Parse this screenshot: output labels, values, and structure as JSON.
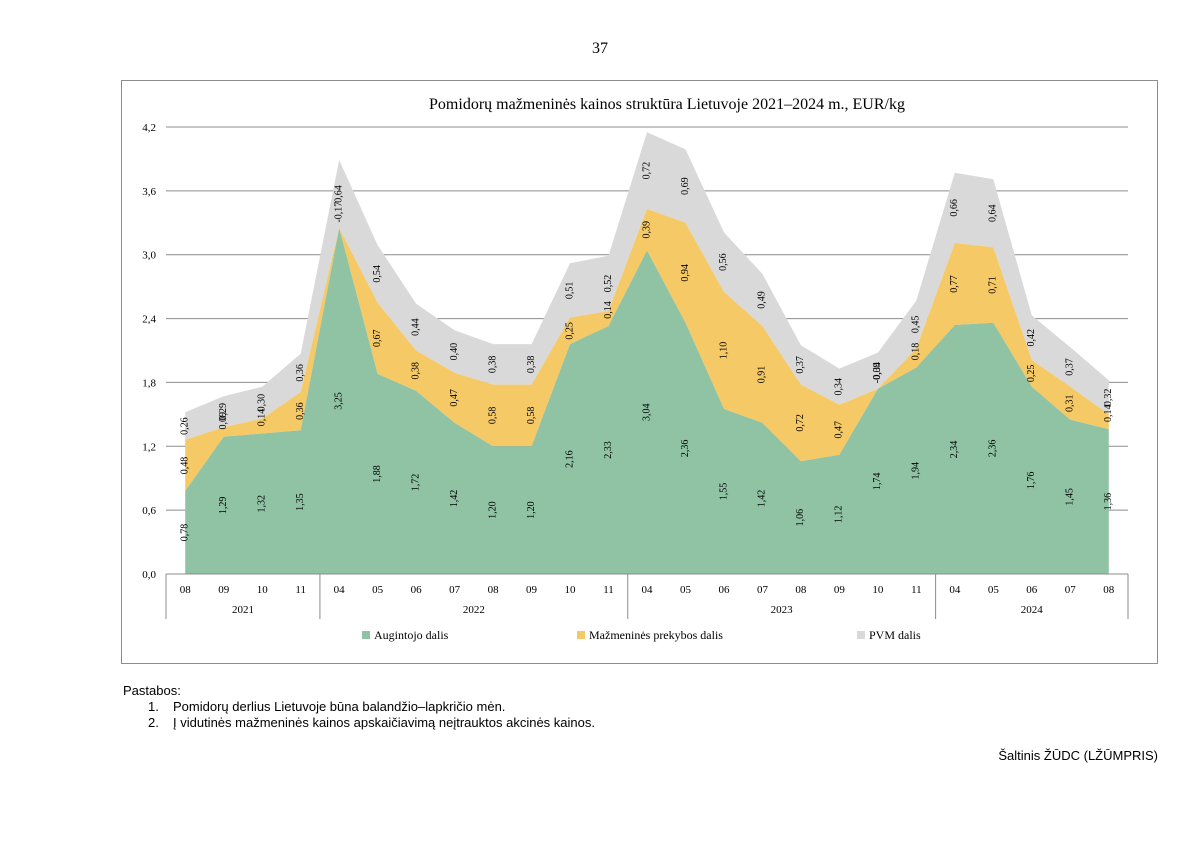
{
  "page_number": "37",
  "notes": {
    "heading": "Pastabos:",
    "items": [
      {
        "num": "1.",
        "text": "Pomidorų derlius Lietuvoje būna balandžio–lapkričio mėn."
      },
      {
        "num": "2.",
        "text": "Į vidutinės mažmeninės kainos apskaičiavimą neįtrauktos akcinės kainos."
      }
    ]
  },
  "source": "Šaltinis ŽŪDC (LŽŪMPRIS)",
  "colors": {
    "augintojo": "#8fc3a4",
    "prekybos": "#f5c966",
    "pvm": "#d9d9d9",
    "grid": "#8c8c8c"
  },
  "chart_data": {
    "type": "area",
    "stacked": true,
    "title": "Pomidorų mažmeninės kainos struktūra Lietuvoje 2021–2024 m., EUR/kg",
    "ylim": [
      0,
      4.2
    ],
    "yticks": [
      "0,0",
      "0,6",
      "1,2",
      "1,8",
      "2,4",
      "3,0",
      "3,6",
      "4,2"
    ],
    "categories": [
      "08",
      "09",
      "10",
      "11",
      "04",
      "05",
      "06",
      "07",
      "08",
      "09",
      "10",
      "11",
      "04",
      "05",
      "06",
      "07",
      "08",
      "09",
      "10",
      "11",
      "04",
      "05",
      "06",
      "07",
      "08"
    ],
    "year_groups": [
      {
        "label": "2021",
        "count": 4
      },
      {
        "label": "2022",
        "count": 8
      },
      {
        "label": "2023",
        "count": 8
      },
      {
        "label": "2024",
        "count": 5
      }
    ],
    "legend_position": "bottom",
    "series": [
      {
        "name": "Augintojo dalis",
        "color_key": "augintojo",
        "values": [
          0.78,
          1.29,
          1.32,
          1.35,
          3.25,
          1.88,
          1.72,
          1.42,
          1.2,
          1.2,
          2.16,
          2.33,
          3.04,
          2.36,
          1.55,
          1.42,
          1.06,
          1.12,
          1.74,
          1.94,
          2.34,
          2.36,
          1.76,
          1.45,
          1.36
        ],
        "labels": [
          "0,78",
          "1,29",
          "1,32",
          "1,35",
          "3,25",
          "1,88",
          "1,72",
          "1,42",
          "1,20",
          "1,20",
          "2,16",
          "2,33",
          "3,04",
          "2,36",
          "1,55",
          "1,42",
          "1,06",
          "1,12",
          "1,74",
          "1,94",
          "2,34",
          "2,36",
          "1,76",
          "1,45",
          "1,36"
        ]
      },
      {
        "name": "Mažmeninės prekybos dalis",
        "color_key": "prekybos",
        "values": [
          0.48,
          0.09,
          0.14,
          0.36,
          -0.17,
          0.67,
          0.38,
          0.47,
          0.58,
          0.58,
          0.25,
          0.14,
          0.39,
          0.94,
          1.1,
          0.91,
          0.72,
          0.47,
          -0.09,
          0.18,
          0.77,
          0.71,
          0.25,
          0.31,
          0.14
        ],
        "labels": [
          "0,48",
          "0,09",
          "0,14",
          "0,36",
          "-0,17",
          "0,67",
          "0,38",
          "0,47",
          "0,58",
          "0,58",
          "0,25",
          "0,14",
          "0,39",
          "0,94",
          "1,10",
          "0,91",
          "0,72",
          "0,47",
          "-0,09",
          "0,18",
          "0,77",
          "0,71",
          "0,25",
          "0,31",
          "0,14"
        ]
      },
      {
        "name": "PVM dalis",
        "color_key": "pvm",
        "values": [
          0.26,
          0.29,
          0.3,
          0.36,
          0.64,
          0.54,
          0.44,
          0.4,
          0.38,
          0.38,
          0.51,
          0.52,
          0.72,
          0.69,
          0.56,
          0.49,
          0.37,
          0.34,
          0.34,
          0.45,
          0.66,
          0.64,
          0.42,
          0.37,
          0.32
        ],
        "labels": [
          "0,26",
          "0,29",
          "0,30",
          "0,36",
          "0,64",
          "0,54",
          "0,44",
          "0,40",
          "0,38",
          "0,38",
          "0,51",
          "0,52",
          "0,72",
          "0,69",
          "0,56",
          "0,49",
          "0,37",
          "0,34",
          "0,34",
          "0,45",
          "0,66",
          "0,64",
          "0,42",
          "0,37",
          "0,32"
        ]
      }
    ]
  }
}
